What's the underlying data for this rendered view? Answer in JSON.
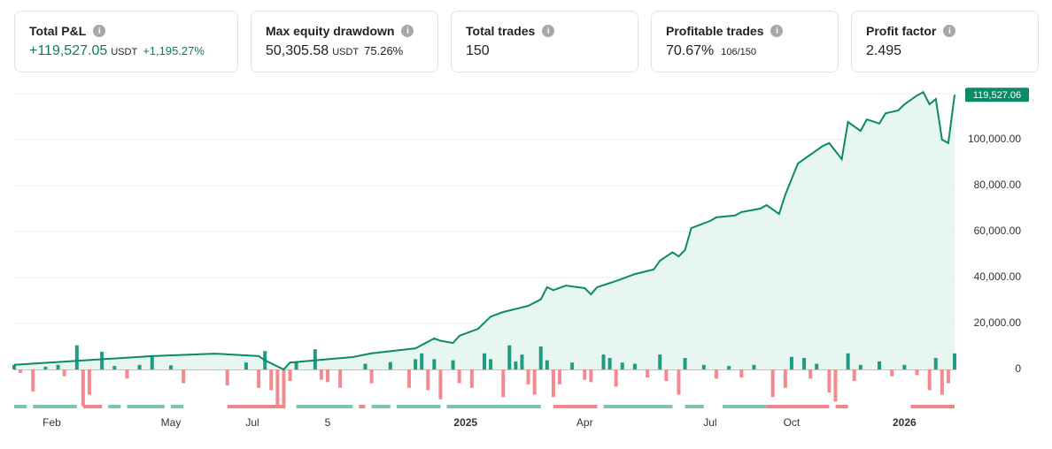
{
  "cards": [
    {
      "title": "Total P&L",
      "value": "+119,527.05",
      "unit": "USDT",
      "extra": "+1,195.27%",
      "color": "#0b7d5e"
    },
    {
      "title": "Max equity drawdown",
      "value": "50,305.58",
      "unit": "USDT",
      "extra": "75.26%",
      "color": "#222222"
    },
    {
      "title": "Total trades",
      "value": "150",
      "color": "#222222"
    },
    {
      "title": "Profitable trades",
      "value": "70.67%",
      "extra": "106/150",
      "color": "#222222"
    },
    {
      "title": "Profit factor",
      "value": "2.495",
      "color": "#222222"
    }
  ],
  "chart_data": {
    "type": "line",
    "line_color": "#0b8a6a",
    "area_color": "#e8f6f1",
    "bar_up_color": "#1f9c84",
    "bar_down_color": "#f28b8f",
    "xlim": [
      0,
      150
    ],
    "ylim": [
      -18000,
      120000
    ],
    "xticks": [
      {
        "value": 6,
        "label": "Feb"
      },
      {
        "value": 25,
        "label": "May"
      },
      {
        "value": 38,
        "label": "Jul"
      },
      {
        "value": 50,
        "label": "5"
      },
      {
        "value": 72,
        "label": "2025"
      },
      {
        "value": 91,
        "label": "Apr"
      },
      {
        "value": 111,
        "label": "Jul"
      },
      {
        "value": 124,
        "label": "Oct"
      },
      {
        "value": 142,
        "label": "2026"
      }
    ],
    "yticks": [
      0,
      {
        "value": 20000,
        "label": "20,000.00"
      },
      {
        "value": 40000,
        "label": "40,000.00"
      },
      {
        "value": 60000,
        "label": "60,000.00"
      },
      {
        "value": 80000,
        "label": "80,000.00"
      },
      {
        "value": 100000,
        "label": "100,000.00"
      }
    ],
    "grid": true,
    "equity": {
      "x": [
        0,
        22,
        32,
        39,
        40,
        43,
        44,
        54,
        57,
        64,
        67,
        68,
        70,
        71,
        74,
        76,
        78,
        81,
        82,
        84,
        85,
        86,
        88,
        91,
        92,
        93,
        96,
        99,
        102,
        103,
        105,
        106,
        107,
        108,
        111,
        112,
        115,
        116,
        119,
        120,
        122,
        123,
        125,
        127,
        129,
        130,
        132,
        133,
        135,
        136,
        138,
        139,
        141,
        142,
        144,
        145,
        146,
        147,
        148,
        149,
        150
      ],
      "values": [
        2000,
        5800,
        6900,
        5800,
        4000,
        0,
        3000,
        5400,
        7000,
        9200,
        13500,
        12500,
        11500,
        14600,
        17700,
        23000,
        25000,
        27000,
        27700,
        30500,
        35800,
        34500,
        36500,
        35400,
        32700,
        35800,
        38500,
        41500,
        43500,
        47300,
        51000,
        49200,
        52000,
        61500,
        64600,
        66200,
        67000,
        68500,
        70000,
        71500,
        67700,
        76000,
        89600,
        93500,
        97300,
        98500,
        91500,
        107700,
        103800,
        108800,
        107000,
        111500,
        112700,
        115400,
        119200,
        120700,
        115400,
        117700,
        100000,
        98500,
        119527.06
      ],
      "last_label": "119,527.06"
    },
    "trades": {
      "x": [
        0,
        1,
        3,
        5,
        7,
        8,
        10,
        11,
        12,
        14,
        16,
        18,
        20,
        22,
        25,
        27,
        34,
        37,
        39,
        40,
        41,
        42,
        43,
        44,
        45,
        48,
        49,
        50,
        52,
        56,
        57,
        60,
        63,
        64,
        65,
        66,
        67,
        68,
        70,
        71,
        73,
        75,
        76,
        78,
        79,
        80,
        81,
        82,
        83,
        84,
        85,
        86,
        87,
        89,
        91,
        92,
        94,
        95,
        96,
        97,
        99,
        101,
        103,
        104,
        106,
        107,
        110,
        112,
        114,
        116,
        118,
        121,
        123,
        124,
        126,
        127,
        128,
        130,
        131,
        133,
        134,
        135,
        138,
        140,
        142,
        144,
        146,
        147,
        148,
        149,
        150
      ],
      "values": [
        2000,
        -1500,
        -9600,
        1200,
        2000,
        -3000,
        10500,
        -16000,
        -11000,
        7700,
        1500,
        -4000,
        2000,
        6000,
        1800,
        -6000,
        -7000,
        3000,
        -8000,
        8000,
        -9000,
        -16500,
        -17000,
        -5000,
        3500,
        8800,
        -4500,
        -5500,
        -8000,
        2500,
        -6000,
        3200,
        -8000,
        4500,
        7000,
        -9000,
        4500,
        -13000,
        4000,
        -6000,
        -8000,
        7000,
        4500,
        -12000,
        10500,
        3500,
        6500,
        -6500,
        -11000,
        10000,
        4000,
        -12000,
        -6500,
        3000,
        -4500,
        -5500,
        6500,
        5000,
        -7500,
        3000,
        2500,
        -3500,
        6500,
        -5000,
        -11000,
        5000,
        2000,
        -4000,
        1500,
        -3500,
        2000,
        -12000,
        -8000,
        5500,
        5000,
        -4000,
        2500,
        -10000,
        -14000,
        7000,
        -5000,
        2000,
        3500,
        -3000,
        2000,
        -2500,
        -9000,
        5000,
        -11000,
        -6000,
        7000
      ]
    },
    "strip": [
      {
        "x0": 0,
        "x1": 2,
        "color": "#7cc5b1"
      },
      {
        "x0": 3,
        "x1": 10,
        "color": "#7cc5b1"
      },
      {
        "x0": 11,
        "x1": 14,
        "color": "#f0868a"
      },
      {
        "x0": 15,
        "x1": 17,
        "color": "#7cc5b1"
      },
      {
        "x0": 18,
        "x1": 24,
        "color": "#7cc5b1"
      },
      {
        "x0": 25,
        "x1": 27,
        "color": "#7cc5b1"
      },
      {
        "x0": 34,
        "x1": 43,
        "color": "#f0868a"
      },
      {
        "x0": 45,
        "x1": 54,
        "color": "#7cc5b1"
      },
      {
        "x0": 55,
        "x1": 56,
        "color": "#f0868a"
      },
      {
        "x0": 57,
        "x1": 60,
        "color": "#7cc5b1"
      },
      {
        "x0": 61,
        "x1": 68,
        "color": "#7cc5b1"
      },
      {
        "x0": 69,
        "x1": 84,
        "color": "#7cc5b1"
      },
      {
        "x0": 86,
        "x1": 93,
        "color": "#f0868a"
      },
      {
        "x0": 94,
        "x1": 105,
        "color": "#7cc5b1"
      },
      {
        "x0": 107,
        "x1": 110,
        "color": "#7cc5b1"
      },
      {
        "x0": 113,
        "x1": 120,
        "color": "#7cc5b1"
      },
      {
        "x0": 120,
        "x1": 130,
        "color": "#f0868a"
      },
      {
        "x0": 131,
        "x1": 133,
        "color": "#f0868a"
      },
      {
        "x0": 143,
        "x1": 150,
        "color": "#f0868a"
      }
    ]
  }
}
